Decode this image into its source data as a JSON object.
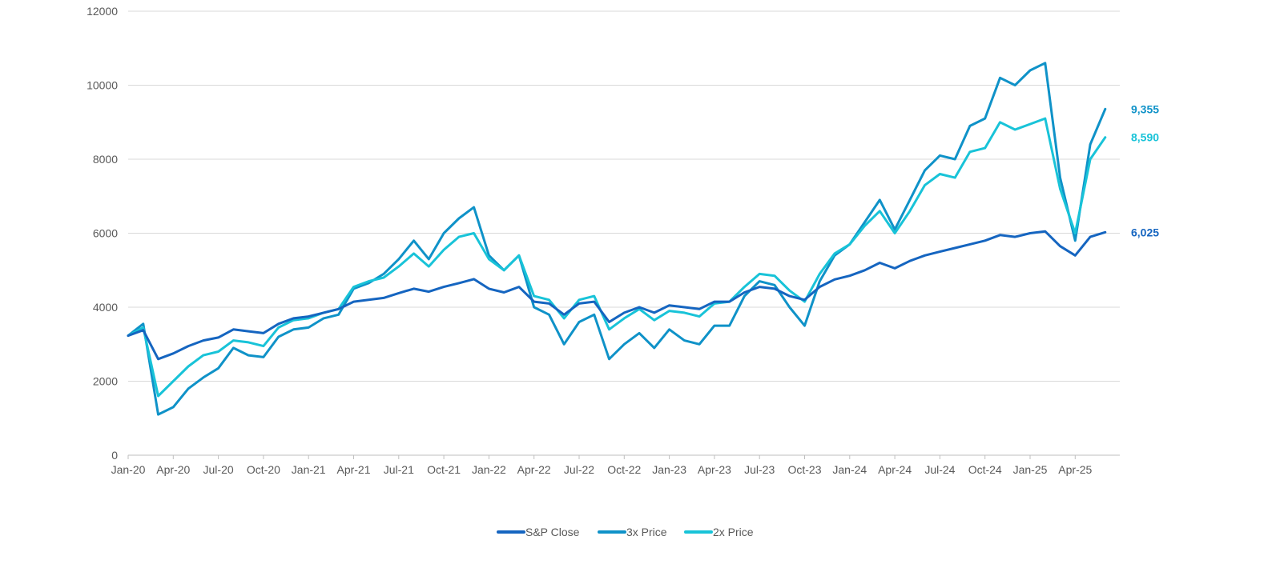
{
  "chart_data": {
    "type": "line",
    "title": "",
    "xlabel": "",
    "ylabel": "",
    "ylim": [
      0,
      12000
    ],
    "yticks": [
      0,
      2000,
      4000,
      6000,
      8000,
      10000,
      12000
    ],
    "ytick_labels": [
      "0",
      "2000",
      "4000",
      "6000",
      "8000",
      "10000",
      "12000"
    ],
    "xtick_labels": [
      "Jan-20",
      "Apr-20",
      "Jul-20",
      "Oct-20",
      "Jan-21",
      "Apr-21",
      "Jul-21",
      "Oct-21",
      "Jan-22",
      "Apr-22",
      "Jul-22",
      "Oct-22",
      "Jan-23",
      "Apr-23",
      "Jul-23",
      "Oct-23",
      "Jan-24",
      "Apr-24",
      "Jul-24",
      "Oct-24",
      "Jan-25",
      "Apr-25"
    ],
    "grid": "horizontal",
    "legend_position": "bottom",
    "x": [
      "Jan-20",
      "Feb-20",
      "Mar-20",
      "Apr-20",
      "May-20",
      "Jun-20",
      "Jul-20",
      "Aug-20",
      "Sep-20",
      "Oct-20",
      "Nov-20",
      "Dec-20",
      "Jan-21",
      "Feb-21",
      "Mar-21",
      "Apr-21",
      "May-21",
      "Jun-21",
      "Jul-21",
      "Aug-21",
      "Sep-21",
      "Oct-21",
      "Nov-21",
      "Dec-21",
      "Jan-22",
      "Feb-22",
      "Mar-22",
      "Apr-22",
      "May-22",
      "Jun-22",
      "Jul-22",
      "Aug-22",
      "Sep-22",
      "Oct-22",
      "Nov-22",
      "Dec-22",
      "Jan-23",
      "Feb-23",
      "Mar-23",
      "Apr-23",
      "May-23",
      "Jun-23",
      "Jul-23",
      "Aug-23",
      "Sep-23",
      "Oct-23",
      "Nov-23",
      "Dec-23",
      "Jan-24",
      "Feb-24",
      "Mar-24",
      "Apr-24",
      "May-24",
      "Jun-24",
      "Jul-24",
      "Aug-24",
      "Sep-24",
      "Oct-24",
      "Nov-24",
      "Dec-24",
      "Jan-25",
      "Feb-25",
      "Mar-25",
      "Apr-25",
      "May-25",
      "Jun-25"
    ],
    "series": [
      {
        "name": "S&P Close",
        "color": "#1565c0",
        "end_label": "6,025",
        "values": [
          3230,
          3380,
          2600,
          2750,
          2950,
          3100,
          3180,
          3400,
          3350,
          3300,
          3550,
          3700,
          3750,
          3850,
          3950,
          4150,
          4200,
          4250,
          4380,
          4500,
          4420,
          4550,
          4650,
          4760,
          4500,
          4400,
          4550,
          4150,
          4100,
          3800,
          4100,
          4150,
          3600,
          3850,
          4000,
          3850,
          4050,
          4000,
          3950,
          4150,
          4150,
          4400,
          4550,
          4500,
          4300,
          4200,
          4550,
          4750,
          4850,
          5000,
          5200,
          5050,
          5250,
          5400,
          5500,
          5600,
          5700,
          5800,
          5950,
          5900,
          6000,
          6050,
          5650,
          5400,
          5900,
          6025
        ]
      },
      {
        "name": "3x Price",
        "color": "#0f92c8",
        "end_label": "9,355",
        "values": [
          3230,
          3550,
          1100,
          1300,
          1800,
          2100,
          2350,
          2900,
          2700,
          2650,
          3200,
          3400,
          3450,
          3700,
          3800,
          4500,
          4650,
          4900,
          5300,
          5800,
          5300,
          6000,
          6400,
          6700,
          5400,
          5000,
          5400,
          4000,
          3800,
          3000,
          3600,
          3800,
          2600,
          3000,
          3300,
          2900,
          3400,
          3100,
          3000,
          3500,
          3500,
          4300,
          4700,
          4600,
          4000,
          3500,
          4700,
          5400,
          5700,
          6300,
          6900,
          6100,
          6900,
          7700,
          8100,
          8000,
          8900,
          9100,
          10200,
          10000,
          10400,
          10600,
          7500,
          5800,
          8400,
          9355
        ]
      },
      {
        "name": "2x Price",
        "color": "#18c3d8",
        "end_label": "8,590",
        "values": [
          3230,
          3450,
          1600,
          2000,
          2400,
          2700,
          2800,
          3100,
          3050,
          2950,
          3450,
          3650,
          3700,
          3850,
          3950,
          4550,
          4700,
          4800,
          5100,
          5450,
          5100,
          5550,
          5900,
          6000,
          5300,
          5000,
          5400,
          4300,
          4200,
          3700,
          4200,
          4300,
          3400,
          3700,
          3950,
          3650,
          3900,
          3850,
          3750,
          4100,
          4150,
          4550,
          4900,
          4850,
          4450,
          4150,
          4900,
          5450,
          5700,
          6200,
          6600,
          6000,
          6600,
          7300,
          7600,
          7500,
          8200,
          8300,
          9000,
          8800,
          8950,
          9100,
          7200,
          6000,
          8000,
          8590
        ]
      }
    ]
  }
}
